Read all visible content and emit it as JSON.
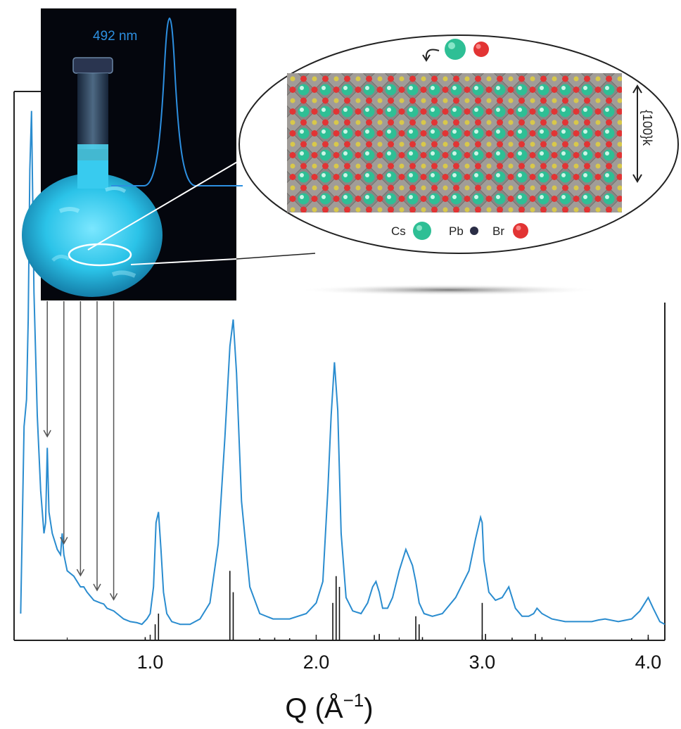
{
  "chart_data": {
    "type": "line",
    "xlabel": "Q (Å",
    "xlabel_sup": "−1",
    "xlabel_close": ")",
    "xlim": [
      0.18,
      4.1
    ],
    "ylim": [
      0,
      1.0
    ],
    "xticks": [
      {
        "value": 1.0,
        "label": "1.0"
      },
      {
        "value": 2.0,
        "label": "2.0"
      },
      {
        "value": 3.0,
        "label": "3.0"
      },
      {
        "value": 4.0,
        "label": "4.0"
      }
    ],
    "series": [
      {
        "color": "#2a8ccf",
        "x": [
          0.22,
          0.24,
          0.255,
          0.265,
          0.275,
          0.285,
          0.3,
          0.32,
          0.34,
          0.36,
          0.37,
          0.38,
          0.39,
          0.41,
          0.44,
          0.46,
          0.47,
          0.48,
          0.5,
          0.54,
          0.58,
          0.6,
          0.62,
          0.66,
          0.7,
          0.72,
          0.74,
          0.78,
          0.8,
          0.84,
          0.88,
          0.92,
          0.95,
          0.98,
          1.0,
          1.02,
          1.035,
          1.05,
          1.065,
          1.08,
          1.1,
          1.13,
          1.18,
          1.24,
          1.3,
          1.36,
          1.41,
          1.45,
          1.48,
          1.5,
          1.52,
          1.55,
          1.6,
          1.66,
          1.74,
          1.84,
          1.94,
          2.0,
          2.04,
          2.07,
          2.09,
          2.11,
          2.13,
          2.15,
          2.18,
          2.22,
          2.27,
          2.31,
          2.34,
          2.36,
          2.38,
          2.4,
          2.43,
          2.46,
          2.5,
          2.54,
          2.58,
          2.6,
          2.62,
          2.65,
          2.7,
          2.76,
          2.84,
          2.92,
          2.96,
          2.99,
          3.0,
          3.01,
          3.04,
          3.08,
          3.12,
          3.16,
          3.18,
          3.2,
          3.24,
          3.28,
          3.31,
          3.33,
          3.36,
          3.42,
          3.5,
          3.58,
          3.66,
          3.7,
          3.74,
          3.82,
          3.9,
          3.95,
          3.98,
          4.0,
          4.03,
          4.07,
          4.1
        ],
        "y": [
          0.05,
          0.4,
          0.45,
          0.6,
          0.88,
          0.99,
          0.65,
          0.42,
          0.28,
          0.2,
          0.22,
          0.36,
          0.24,
          0.2,
          0.17,
          0.16,
          0.2,
          0.16,
          0.13,
          0.12,
          0.1,
          0.1,
          0.09,
          0.075,
          0.07,
          0.068,
          0.06,
          0.055,
          0.05,
          0.04,
          0.035,
          0.033,
          0.03,
          0.04,
          0.05,
          0.1,
          0.22,
          0.24,
          0.17,
          0.09,
          0.05,
          0.035,
          0.03,
          0.03,
          0.04,
          0.07,
          0.18,
          0.38,
          0.55,
          0.6,
          0.5,
          0.26,
          0.1,
          0.05,
          0.04,
          0.04,
          0.05,
          0.07,
          0.11,
          0.28,
          0.42,
          0.52,
          0.43,
          0.2,
          0.08,
          0.055,
          0.05,
          0.07,
          0.1,
          0.11,
          0.09,
          0.06,
          0.06,
          0.08,
          0.13,
          0.17,
          0.14,
          0.11,
          0.07,
          0.05,
          0.045,
          0.05,
          0.08,
          0.13,
          0.19,
          0.23,
          0.22,
          0.15,
          0.09,
          0.075,
          0.08,
          0.1,
          0.08,
          0.06,
          0.045,
          0.045,
          0.05,
          0.06,
          0.05,
          0.04,
          0.035,
          0.035,
          0.035,
          0.038,
          0.04,
          0.035,
          0.04,
          0.055,
          0.07,
          0.08,
          0.06,
          0.035,
          0.03
        ]
      }
    ],
    "reference_sticks": [
      {
        "x": 0.97,
        "h": 0.006
      },
      {
        "x": 1.03,
        "h": 0.03
      },
      {
        "x": 1.05,
        "h": 0.05
      },
      {
        "x": 1.48,
        "h": 0.13
      },
      {
        "x": 1.5,
        "h": 0.09
      },
      {
        "x": 1.66,
        "h": 0.004
      },
      {
        "x": 1.75,
        "h": 0.005
      },
      {
        "x": 1.84,
        "h": 0.004
      },
      {
        "x": 2.1,
        "h": 0.07
      },
      {
        "x": 2.12,
        "h": 0.12
      },
      {
        "x": 2.14,
        "h": 0.1
      },
      {
        "x": 2.35,
        "h": 0.01
      },
      {
        "x": 2.38,
        "h": 0.012
      },
      {
        "x": 2.6,
        "h": 0.045
      },
      {
        "x": 2.62,
        "h": 0.03
      },
      {
        "x": 2.64,
        "h": 0.006
      },
      {
        "x": 3.0,
        "h": 0.07
      },
      {
        "x": 3.02,
        "h": 0.012
      },
      {
        "x": 3.18,
        "h": 0.005
      },
      {
        "x": 3.32,
        "h": 0.012
      },
      {
        "x": 3.36,
        "h": 0.006
      },
      {
        "x": 3.9,
        "h": 0.004
      },
      {
        "x": 4.0,
        "h": 0.005
      }
    ],
    "marked_peaks_x": [
      0.38,
      0.48,
      0.58,
      0.68,
      0.78
    ]
  },
  "inset_photo": {
    "label": "492 nm",
    "spectrum_color": "#2d8fe0"
  },
  "structure_inset": {
    "facet_label": "{100}k",
    "legend": [
      {
        "label": "Cs",
        "color": "#2ebf95"
      },
      {
        "label": "Pb",
        "color": "#2a2d45"
      },
      {
        "label": "Br",
        "color": "#e23434"
      }
    ],
    "departing_atoms": [
      "#2ebf95",
      "#e23434"
    ]
  },
  "colors": {
    "curve": "#2a8ccf",
    "photo_bg": "#04060d",
    "glow": "#3fc9ee"
  }
}
